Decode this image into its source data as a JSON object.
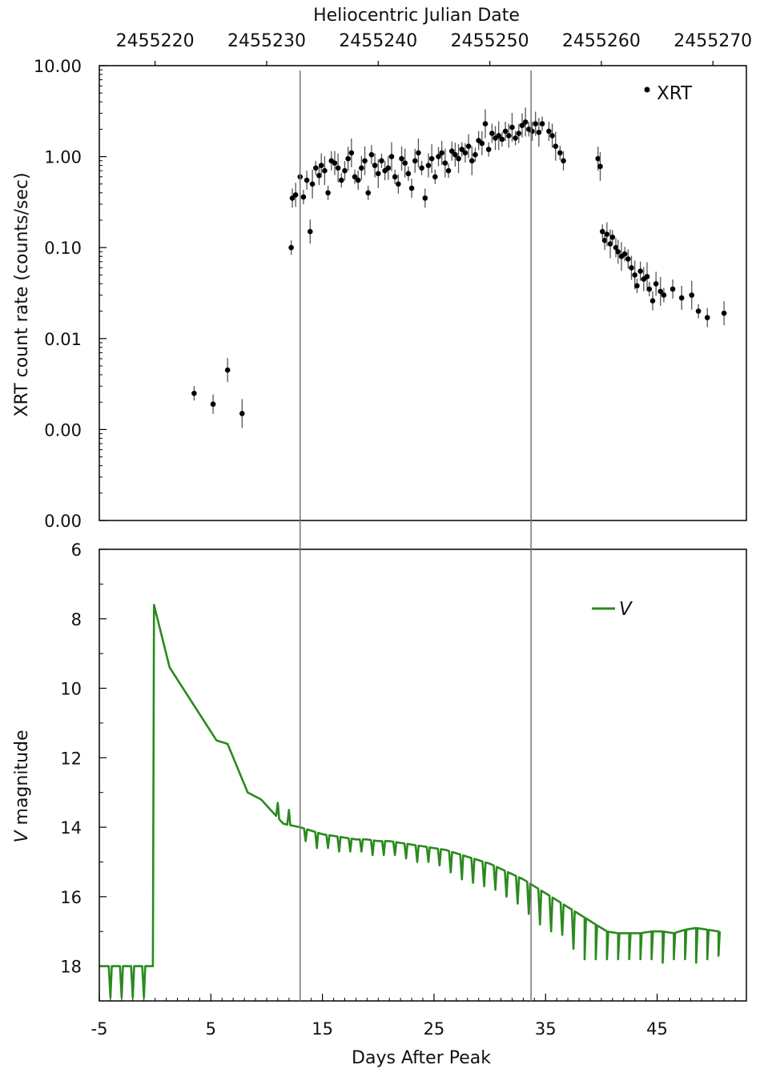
{
  "chart_data": [
    {
      "type": "scatter",
      "top_axis_label": "Heliocentric Julian Date",
      "top_ticks": [
        "2455220",
        "2455230",
        "2455240",
        "2455250",
        "2455260",
        "2455270"
      ],
      "top_tick_values": [
        2455220,
        2455230,
        2455240,
        2455250,
        2455260,
        2455270
      ],
      "ylabel": "XRT count rate (counts/sec)",
      "yscale": "log",
      "ylim": [
        0.0001,
        10
      ],
      "yticks": [
        {
          "value": 10,
          "label": "10.00"
        },
        {
          "value": 1,
          "label": "1.00"
        },
        {
          "value": 0.1,
          "label": "0.10"
        },
        {
          "value": 0.01,
          "label": "0.01"
        },
        {
          "value": 0.001,
          "label": "0.00"
        },
        {
          "value": 0.0001,
          "label": "0.00"
        }
      ],
      "xlim": [
        -5,
        53
      ],
      "legend": {
        "label": "XRT",
        "position": "top-right"
      },
      "vlines": [
        13,
        33.7
      ],
      "series": [
        {
          "name": "XRT",
          "x": [
            3.5,
            5.2,
            6.5,
            7.8,
            12.2,
            12.3,
            12.6,
            13,
            13.3,
            13.6,
            13.9,
            14.1,
            14.4,
            14.7,
            14.9,
            15.2,
            15.5,
            15.8,
            16.1,
            16.4,
            16.7,
            17,
            17.3,
            17.6,
            17.9,
            18.2,
            18.5,
            18.8,
            19.1,
            19.4,
            19.7,
            20,
            20.3,
            20.6,
            20.9,
            21.2,
            21.5,
            21.8,
            22.1,
            22.4,
            22.7,
            23,
            23.3,
            23.6,
            23.9,
            24.2,
            24.5,
            24.8,
            25.1,
            25.4,
            25.7,
            26,
            26.3,
            26.6,
            26.9,
            27.2,
            27.5,
            27.8,
            28.1,
            28.4,
            28.7,
            29,
            29.3,
            29.6,
            29.9,
            30.2,
            30.5,
            30.8,
            31.1,
            31.4,
            31.7,
            32,
            32.3,
            32.6,
            32.9,
            33.2,
            33.5,
            33.8,
            34.1,
            34.4,
            34.7,
            35.3,
            35.6,
            35.9,
            36.3,
            36.6,
            39.7,
            39.9,
            40.1,
            40.3,
            40.5,
            40.8,
            41,
            41.3,
            41.5,
            41.8,
            42.1,
            42.4,
            42.7,
            43,
            43.2,
            43.5,
            43.8,
            44.1,
            44.3,
            44.6,
            44.9,
            45.3,
            45.6,
            46.4,
            47.2,
            48.1,
            48.7,
            49.5,
            51
          ],
          "y": [
            0.0025,
            0.0019,
            0.0045,
            0.0015,
            0.1,
            0.35,
            0.38,
            0.6,
            0.36,
            0.55,
            0.15,
            0.5,
            0.75,
            0.62,
            0.8,
            0.7,
            0.4,
            0.9,
            0.85,
            0.75,
            0.55,
            0.7,
            0.95,
            1.1,
            0.6,
            0.55,
            0.75,
            0.9,
            0.4,
            1.05,
            0.8,
            0.65,
            0.9,
            0.7,
            0.75,
            1,
            0.6,
            0.5,
            0.95,
            0.85,
            0.65,
            0.45,
            0.9,
            1.1,
            0.75,
            0.35,
            0.8,
            0.95,
            0.6,
            1,
            1.1,
            0.85,
            0.7,
            1.15,
            1.05,
            0.95,
            1.2,
            1.1,
            1.3,
            0.9,
            1.05,
            1.5,
            1.4,
            2.3,
            1.2,
            1.8,
            1.6,
            1.7,
            1.55,
            1.9,
            1.7,
            2.1,
            1.6,
            1.8,
            2.2,
            2.4,
            2,
            1.9,
            2.3,
            1.85,
            2.3,
            1.9,
            1.7,
            1.3,
            1.1,
            0.9,
            0.95,
            0.78,
            0.15,
            0.12,
            0.14,
            0.11,
            0.13,
            0.1,
            0.09,
            0.08,
            0.085,
            0.075,
            0.06,
            0.05,
            0.038,
            0.055,
            0.045,
            0.048,
            0.035,
            0.026,
            0.04,
            0.033,
            0.03,
            0.035,
            0.028,
            0.03,
            0.02,
            0.017,
            0.019
          ]
        }
      ]
    },
    {
      "type": "line",
      "xlabel": "Days After Peak",
      "ylabel": "V magnitude",
      "ylabel_italic": "V",
      "ylabel_rest": " magnitude",
      "xlim": [
        -5,
        53
      ],
      "ylim": [
        6,
        19
      ],
      "y_inverted": true,
      "xticks": [
        -5,
        5,
        15,
        25,
        35,
        45
      ],
      "yticks": [
        6,
        8,
        10,
        12,
        14,
        16,
        18
      ],
      "legend": {
        "label": "V",
        "position": "top-right"
      },
      "vlines": [
        13,
        33.7
      ],
      "color": "#2a8a1e",
      "series": [
        {
          "name": "V",
          "x": [
            -5,
            -0.2,
            -0.1,
            1.3,
            5.5,
            6.5,
            8.3,
            9.5,
            11.5,
            13,
            14,
            15,
            16,
            17,
            18,
            19,
            20,
            21,
            22,
            23,
            24,
            25,
            26,
            27,
            28,
            29,
            30,
            31,
            32,
            33,
            34,
            35,
            36,
            37,
            38,
            38.5,
            39.5,
            40.5,
            41.5,
            42.5,
            43.5,
            44.5,
            45.5,
            46.5,
            47.5,
            48.5,
            49.5,
            50.5
          ],
          "y": [
            18,
            18,
            7.6,
            9.4,
            11.5,
            11.6,
            13,
            13.2,
            13.9,
            14,
            14.1,
            14.2,
            14.25,
            14.3,
            14.35,
            14.35,
            14.4,
            14.4,
            14.45,
            14.5,
            14.55,
            14.6,
            14.65,
            14.75,
            14.85,
            14.95,
            15.05,
            15.2,
            15.35,
            15.5,
            15.7,
            15.9,
            16.1,
            16.3,
            16.5,
            16.6,
            16.8,
            17,
            17.05,
            17.05,
            17.05,
            17,
            17,
            17.05,
            16.95,
            16.9,
            16.95,
            17
          ]
        }
      ],
      "dips": {
        "x": [
          -4,
          -3,
          -2,
          -1,
          11,
          12,
          13.5,
          14.5,
          15.5,
          16.5,
          17.5,
          18.5,
          19.5,
          20.5,
          21.5,
          22.5,
          23.5,
          24.5,
          25.5,
          26.5,
          27.5,
          28.5,
          29.5,
          30.5,
          31.5,
          32.5,
          33.5,
          34.5,
          35.5,
          36.5,
          37.5,
          38.5,
          39.5,
          40.5,
          41.5,
          42.5,
          43.5,
          44.5,
          45.5,
          46.5,
          47.5,
          48.5,
          49.5,
          50.5
        ],
        "y": [
          18.9,
          18.9,
          18.9,
          18.9,
          13.3,
          13.5,
          14.4,
          14.6,
          14.6,
          14.7,
          14.7,
          14.7,
          14.8,
          14.8,
          14.8,
          14.9,
          15,
          15,
          15.1,
          15.3,
          15.5,
          15.6,
          15.7,
          15.8,
          16,
          16.2,
          16.5,
          16.8,
          17,
          17.1,
          17.5,
          17.8,
          17.8,
          17.8,
          17.8,
          17.8,
          17.8,
          17.8,
          17.9,
          17.8,
          17.8,
          17.9,
          17.8,
          17.7
        ]
      }
    }
  ]
}
